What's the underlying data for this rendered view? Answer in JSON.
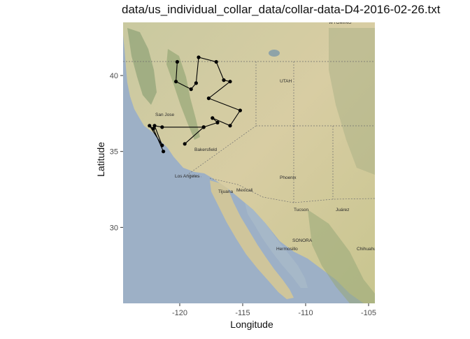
{
  "chart_data": {
    "type": "line",
    "title": "data/us_individual_collar_data/collar-data-D4-2016-02-26.txt",
    "xlabel": "Longitude",
    "ylabel": "Latitude",
    "xlim": [
      -124.5,
      -104.5
    ],
    "ylim": [
      25.0,
      43.5
    ],
    "x_ticks": [
      -120,
      -115,
      -110,
      -105
    ],
    "x_tick_labels": [
      "-120",
      "-115",
      "-110",
      "-105"
    ],
    "y_ticks": [
      30,
      35,
      40
    ],
    "y_tick_labels": [
      "30",
      "35",
      "40"
    ],
    "grid": false,
    "legend": "none",
    "series": [
      {
        "x": [
          -120.2,
          -120.3,
          -119.1,
          -118.7,
          -118.5,
          -117.1,
          -116.5,
          -116.0,
          -117.7,
          -115.2,
          -116.0,
          -117.4,
          -117.0,
          -118.1,
          -119.6,
          -118.1,
          -121.4,
          -122.0,
          -121.4,
          -122.4,
          -122.1,
          -121.3
        ],
        "y": [
          40.9,
          39.6,
          39.1,
          39.5,
          41.2,
          40.9,
          39.7,
          39.6,
          38.5,
          37.7,
          36.7,
          37.2,
          36.9,
          36.6,
          35.5,
          36.6,
          36.6,
          36.7,
          35.4,
          36.7,
          36.5,
          35.0
        ],
        "color": "#000000"
      }
    ]
  },
  "map": {
    "background": "satellite-terrain",
    "labels": {
      "wyoming": "WYOMING",
      "utah": "UTAH",
      "san_jose": "San Jose",
      "bakersfield": "Bakersfield",
      "los_angeles": "Los Angeles",
      "tijuana": "Tijuana",
      "mexicali": "Mexicali",
      "phoenix": "Phoenix",
      "tucson": "Tucson",
      "hermosillo": "Hermosillo",
      "chihuahua": "Chihuahua",
      "sonora": "SONORA",
      "juarez": "Juárez"
    }
  }
}
